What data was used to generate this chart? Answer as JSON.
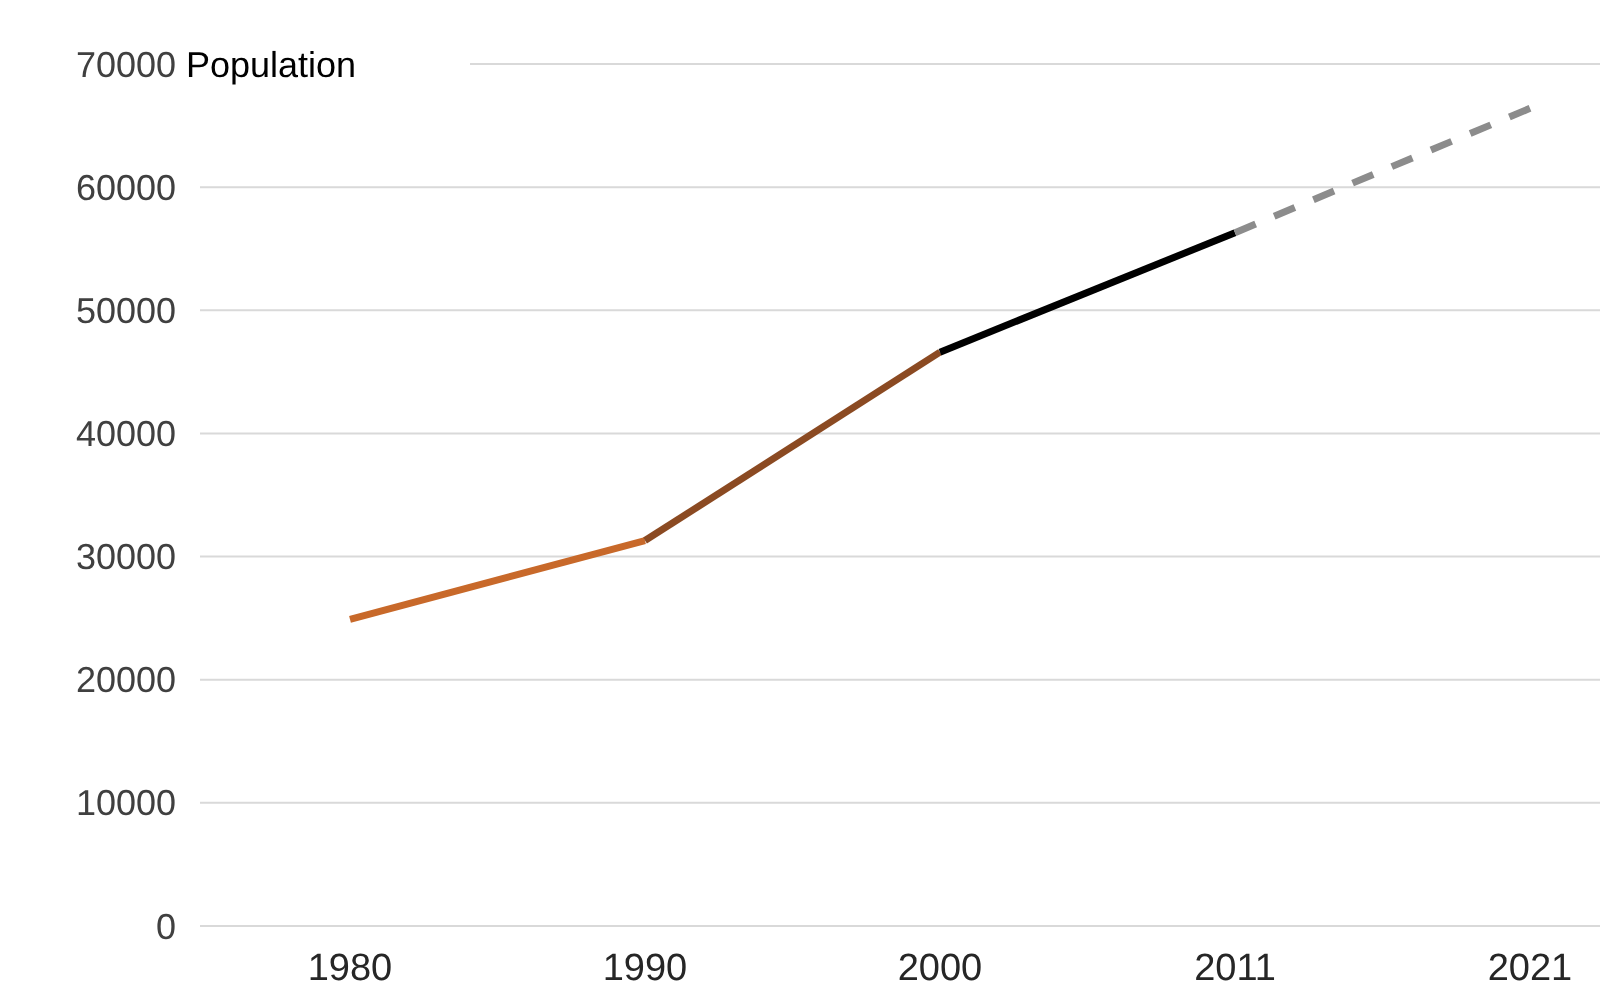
{
  "chart_data": {
    "type": "line",
    "ylabel": "Population",
    "categories": [
      "1980",
      "1990",
      "2000",
      "2011",
      "2021"
    ],
    "series": [
      {
        "color": "#c8692a",
        "values": [
          24900,
          31300,
          null,
          null,
          null
        ]
      },
      {
        "color": "#8b4a22",
        "values": [
          null,
          31300,
          46600,
          null,
          null
        ]
      },
      {
        "color": "#000000",
        "values": [
          null,
          null,
          46600,
          56300,
          null
        ]
      },
      {
        "color": "#8c8c8c",
        "values": [
          null,
          null,
          null,
          56300,
          66400
        ],
        "line_style": "dashed"
      }
    ],
    "ylim": [
      0,
      70000
    ],
    "yticks": [
      0,
      10000,
      20000,
      30000,
      40000,
      50000,
      60000,
      70000
    ],
    "grid": "y",
    "marker": "none"
  }
}
